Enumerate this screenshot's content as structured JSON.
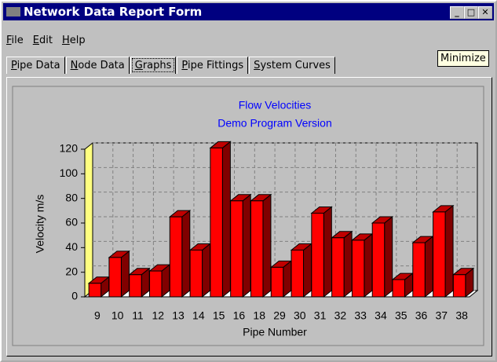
{
  "window": {
    "title": "Network Data Report Form"
  },
  "menu": [
    "File",
    "Edit",
    "Help"
  ],
  "tabs": [
    "Pipe Data",
    "Node Data",
    "Graphs",
    "Pipe Fittings",
    "System Curves"
  ],
  "tooltip": "Minimize",
  "chart_data": {
    "type": "bar3d",
    "title": "Flow Velocities",
    "subtitle": "Demo Program Version",
    "x_label": "Pipe Number",
    "y_label": "Velocity m/s",
    "categories": [
      "9",
      "10",
      "11",
      "12",
      "13",
      "14",
      "15",
      "16",
      "18",
      "29",
      "30",
      "31",
      "32",
      "33",
      "34",
      "35",
      "36",
      "37",
      "38"
    ],
    "values": [
      11,
      32,
      18,
      21,
      65,
      38,
      121,
      78,
      78,
      24,
      38,
      68,
      48,
      46,
      60,
      14,
      44,
      69,
      18
    ],
    "color": "#ff0000",
    "ylim": [
      0,
      120
    ],
    "yticks": [
      0,
      20,
      40,
      60,
      80,
      100,
      120
    ],
    "grid": true
  }
}
